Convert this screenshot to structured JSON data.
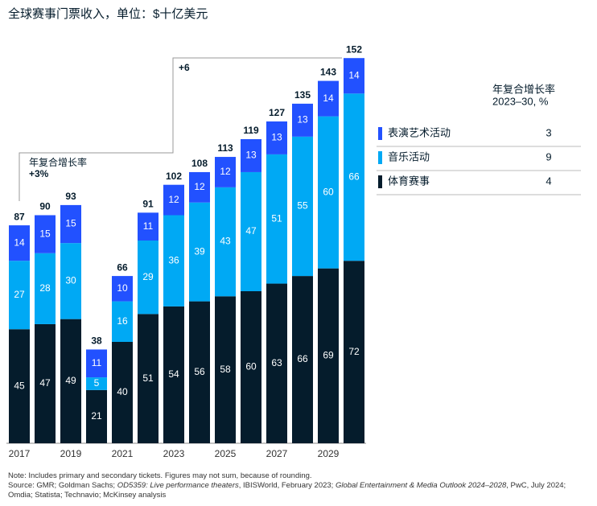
{
  "chart_data": {
    "type": "stacked-bar",
    "title": "全球赛事门票收入，单位：$十亿美元",
    "categories": [
      "2017",
      null,
      "2019",
      null,
      "2021",
      null,
      "2023",
      null,
      "2025",
      null,
      "2027",
      null,
      "2029",
      null
    ],
    "series": [
      {
        "name": "体育赛事",
        "color": "#051c2c",
        "values": [
          45,
          47,
          49,
          21,
          40,
          51,
          54,
          56,
          58,
          60,
          63,
          66,
          69,
          72
        ],
        "cagr": 4
      },
      {
        "name": "音乐活动",
        "color": "#00a9f4",
        "values": [
          27,
          28,
          30,
          5,
          16,
          29,
          36,
          39,
          43,
          47,
          51,
          55,
          60,
          66
        ],
        "cagr": 9
      },
      {
        "name": "表演艺术活动",
        "color": "#2251ff",
        "values": [
          14,
          15,
          15,
          11,
          10,
          11,
          12,
          12,
          12,
          13,
          13,
          13,
          14,
          14
        ],
        "cagr": 3
      }
    ],
    "totals": [
      87,
      90,
      93,
      38,
      66,
      91,
      102,
      108,
      113,
      119,
      127,
      135,
      143,
      152
    ],
    "legend_title": [
      "年复合增长率",
      "2023–30, %"
    ],
    "annotations": {
      "cagr_label": "年复合增长率",
      "early": "+3%",
      "late": "+6"
    },
    "note": "Note: Includes primary and secondary tickets. Figures may not sum, because of rounding.",
    "source": [
      "Source: GMR; Goldman Sachs; ",
      "OD5359: Live performance theaters",
      ", IBISWorld, February 2023; ",
      "Global Entertainment & Media Outlook 2024–2028",
      ", PwC, July 2024; Omdia; Statista; Technavio; McKinsey analysis"
    ]
  }
}
